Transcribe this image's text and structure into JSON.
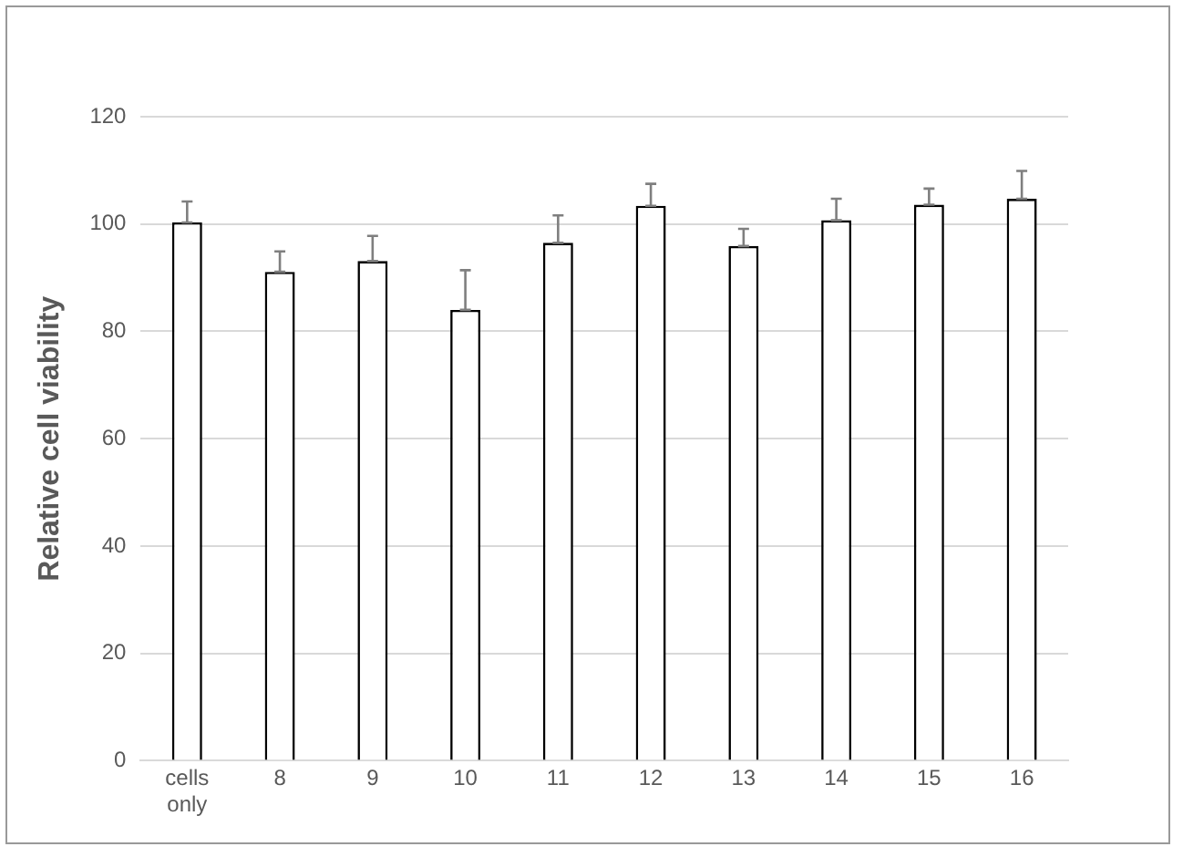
{
  "chart_data": {
    "type": "bar",
    "ylabel": "Relative cell viability",
    "categories": [
      "cells only",
      "8",
      "9",
      "10",
      "11",
      "12",
      "13",
      "14",
      "15",
      "16"
    ],
    "values": [
      100.3,
      91.1,
      93.1,
      84,
      96.5,
      103.4,
      95.9,
      100.7,
      103.6,
      104.7
    ],
    "errors": [
      [
        100.3,
        104.2
      ],
      [
        91.1,
        94.9
      ],
      [
        93.1,
        97.8
      ],
      [
        84,
        91.4
      ],
      [
        96.5,
        101.6
      ],
      [
        103.4,
        107.5
      ],
      [
        95.9,
        99.1
      ],
      [
        100.7,
        104.7
      ],
      [
        103.6,
        106.6
      ],
      [
        104.7,
        109.9
      ]
    ],
    "color": "#ffffff",
    "ylim": [
      0,
      120
    ],
    "yticks": [
      0,
      20,
      40,
      60,
      80,
      100,
      120
    ],
    "grid": "y"
  }
}
